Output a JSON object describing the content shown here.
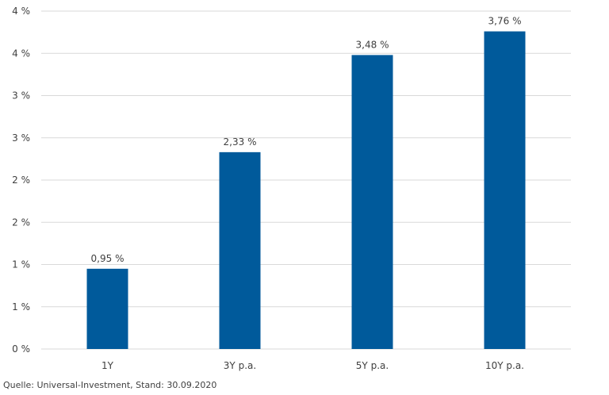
{
  "chart_data": {
    "type": "bar",
    "categories": [
      "1Y",
      "3Y p.a.",
      "5Y p.a.",
      "10Y p.a."
    ],
    "values": [
      0.95,
      2.33,
      3.48,
      3.76
    ],
    "data_labels": [
      "0,95 %",
      "2,33 %",
      "3,48 %",
      "3,76 %"
    ],
    "ylim": [
      0,
      4
    ],
    "y_tick_labels": [
      "0 %",
      "1 %",
      "1 %",
      "2 %",
      "2 %",
      "3 %",
      "3 %",
      "4 %",
      "4 %"
    ],
    "grid": true,
    "bar_color": "#005A9B",
    "title": "",
    "xlabel": "",
    "ylabel": ""
  },
  "source": "Quelle: Universal-Investment, Stand: 30.09.2020"
}
